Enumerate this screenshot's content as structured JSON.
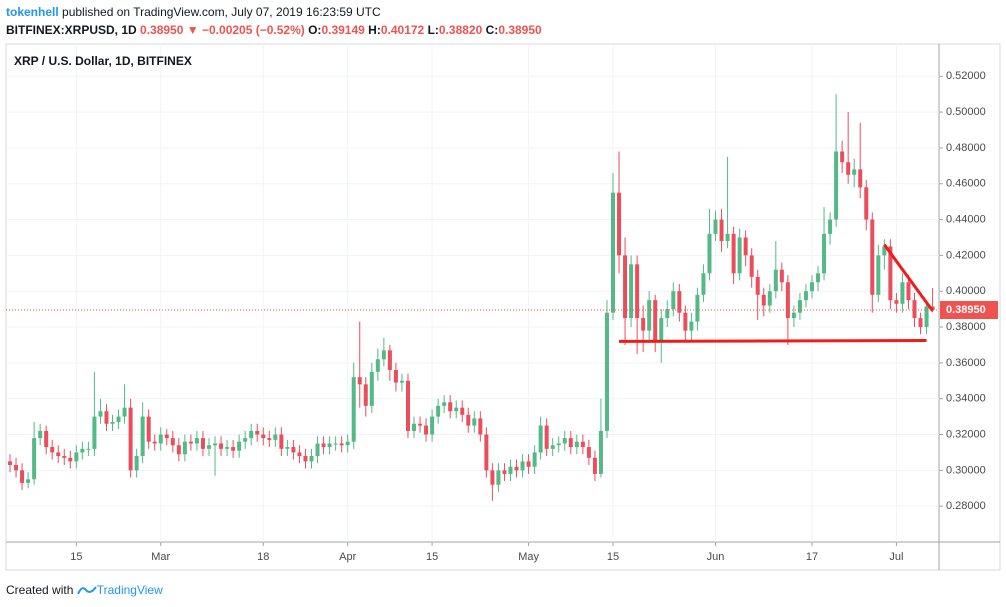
{
  "header": {
    "author": "tokenhell",
    "published": "published on TradingView.com, July 07, 2019 16:23:59 UTC",
    "symbol": "BITFINEX:XRPUSD, 1D",
    "last": "0.38950",
    "arrow": "▼",
    "change": "−0.00205 (−0.52%)",
    "ohlc": [
      {
        "k": "O:",
        "v": "0.39149"
      },
      {
        "k": "H:",
        "v": "0.40172"
      },
      {
        "k": "L:",
        "v": "0.38820"
      },
      {
        "k": "C:",
        "v": "0.38950"
      }
    ]
  },
  "footer": {
    "text": "Created with",
    "brand": "TradingView"
  },
  "chart_data": {
    "type": "candlestick",
    "title": "XRP / U.S. Dollar, 1D, BITFINEX",
    "up_color": "#53b987",
    "down_color": "#eb4d5c",
    "grid": true,
    "x": [
      "Feb 4",
      "Feb 5",
      "Feb 6",
      "Feb 7",
      "Feb 8",
      "Feb 9",
      "Feb 10",
      "Feb 11",
      "Feb 12",
      "Feb 13",
      "Feb 14",
      "Feb 15",
      "Feb 16",
      "Feb 17",
      "Feb 18",
      "Feb 19",
      "Feb 20",
      "Feb 21",
      "Feb 22",
      "Feb 23",
      "Feb 24",
      "Feb 25",
      "Feb 26",
      "Feb 27",
      "Feb 28",
      "Mar 1",
      "Mar 2",
      "Mar 3",
      "Mar 4",
      "Mar 5",
      "Mar 6",
      "Mar 7",
      "Mar 8",
      "Mar 9",
      "Mar 10",
      "Mar 11",
      "Mar 12",
      "Mar 13",
      "Mar 14",
      "Mar 15",
      "Mar 16",
      "Mar 17",
      "Mar 18",
      "Mar 19",
      "Mar 20",
      "Mar 21",
      "Mar 22",
      "Mar 23",
      "Mar 24",
      "Mar 25",
      "Mar 26",
      "Mar 27",
      "Mar 28",
      "Mar 29",
      "Mar 30",
      "Mar 31",
      "Apr 1",
      "Apr 2",
      "Apr 3",
      "Apr 4",
      "Apr 5",
      "Apr 6",
      "Apr 7",
      "Apr 8",
      "Apr 9",
      "Apr 10",
      "Apr 11",
      "Apr 12",
      "Apr 13",
      "Apr 14",
      "Apr 15",
      "Apr 16",
      "Apr 17",
      "Apr 18",
      "Apr 19",
      "Apr 20",
      "Apr 21",
      "Apr 22",
      "Apr 23",
      "Apr 24",
      "Apr 25",
      "Apr 26",
      "Apr 27",
      "Apr 28",
      "Apr 29",
      "Apr 30",
      "May 1",
      "May 2",
      "May 3",
      "May 4",
      "May 5",
      "May 6",
      "May 7",
      "May 8",
      "May 9",
      "May 10",
      "May 11",
      "May 12",
      "May 13",
      "May 14",
      "May 15",
      "May 16",
      "May 17",
      "May 18",
      "May 19",
      "May 20",
      "May 21",
      "May 22",
      "May 23",
      "May 24",
      "May 25",
      "May 26",
      "May 27",
      "May 28",
      "May 29",
      "May 30",
      "May 31",
      "Jun 1",
      "Jun 2",
      "Jun 3",
      "Jun 4",
      "Jun 5",
      "Jun 6",
      "Jun 7",
      "Jun 8",
      "Jun 9",
      "Jun 10",
      "Jun 11",
      "Jun 12",
      "Jun 13",
      "Jun 14",
      "Jun 15",
      "Jun 16",
      "Jun 17",
      "Jun 18",
      "Jun 19",
      "Jun 20",
      "Jun 21",
      "Jun 22",
      "Jun 23",
      "Jun 24",
      "Jun 25",
      "Jun 26",
      "Jun 27",
      "Jun 28",
      "Jun 29",
      "Jun 30",
      "Jul 1",
      "Jul 2",
      "Jul 3",
      "Jul 4",
      "Jul 5",
      "Jul 6",
      "Jul 7"
    ],
    "open": [
      0.305,
      0.303,
      0.3,
      0.293,
      0.295,
      0.318,
      0.322,
      0.313,
      0.31,
      0.308,
      0.307,
      0.305,
      0.31,
      0.312,
      0.312,
      0.33,
      0.333,
      0.326,
      0.327,
      0.33,
      0.335,
      0.3,
      0.308,
      0.33,
      0.316,
      0.315,
      0.32,
      0.318,
      0.314,
      0.309,
      0.316,
      0.315,
      0.318,
      0.312,
      0.314,
      0.315,
      0.312,
      0.313,
      0.311,
      0.316,
      0.318,
      0.322,
      0.32,
      0.318,
      0.317,
      0.32,
      0.312,
      0.313,
      0.31,
      0.308,
      0.305,
      0.308,
      0.315,
      0.313,
      0.315,
      0.315,
      0.314,
      0.316,
      0.352,
      0.348,
      0.336,
      0.355,
      0.362,
      0.367,
      0.356,
      0.349,
      0.35,
      0.322,
      0.326,
      0.325,
      0.32,
      0.33,
      0.336,
      0.338,
      0.333,
      0.335,
      0.331,
      0.325,
      0.329,
      0.32,
      0.3,
      0.292,
      0.3,
      0.298,
      0.302,
      0.3,
      0.305,
      0.302,
      0.31,
      0.325,
      0.312,
      0.314,
      0.315,
      0.318,
      0.313,
      0.316,
      0.313,
      0.307,
      0.298,
      0.322,
      0.388,
      0.455,
      0.42,
      0.385,
      0.415,
      0.385,
      0.378,
      0.395,
      0.372,
      0.385,
      0.39,
      0.4,
      0.388,
      0.378,
      0.383,
      0.398,
      0.41,
      0.432,
      0.44,
      0.428,
      0.432,
      0.41,
      0.43,
      0.42,
      0.408,
      0.398,
      0.392,
      0.4,
      0.412,
      0.405,
      0.385,
      0.388,
      0.395,
      0.4,
      0.405,
      0.41,
      0.432,
      0.44,
      0.478,
      0.472,
      0.465,
      0.468,
      0.458,
      0.44,
      0.398,
      0.42,
      0.425,
      0.395,
      0.393,
      0.405,
      0.395,
      0.385,
      0.38,
      0.39149
    ],
    "high": [
      0.309,
      0.307,
      0.304,
      0.299,
      0.327,
      0.326,
      0.325,
      0.317,
      0.314,
      0.312,
      0.311,
      0.314,
      0.316,
      0.316,
      0.355,
      0.34,
      0.337,
      0.331,
      0.334,
      0.348,
      0.34,
      0.312,
      0.338,
      0.334,
      0.32,
      0.324,
      0.323,
      0.322,
      0.318,
      0.32,
      0.32,
      0.322,
      0.322,
      0.318,
      0.319,
      0.319,
      0.317,
      0.317,
      0.32,
      0.322,
      0.326,
      0.326,
      0.324,
      0.322,
      0.324,
      0.324,
      0.317,
      0.317,
      0.314,
      0.312,
      0.312,
      0.319,
      0.319,
      0.319,
      0.319,
      0.319,
      0.32,
      0.36,
      0.383,
      0.352,
      0.36,
      0.368,
      0.374,
      0.37,
      0.36,
      0.354,
      0.354,
      0.33,
      0.33,
      0.329,
      0.334,
      0.34,
      0.342,
      0.342,
      0.339,
      0.339,
      0.335,
      0.333,
      0.333,
      0.324,
      0.304,
      0.304,
      0.304,
      0.306,
      0.306,
      0.309,
      0.309,
      0.314,
      0.33,
      0.329,
      0.318,
      0.319,
      0.322,
      0.322,
      0.32,
      0.32,
      0.317,
      0.311,
      0.34,
      0.395,
      0.466,
      0.478,
      0.43,
      0.42,
      0.42,
      0.392,
      0.4,
      0.398,
      0.39,
      0.395,
      0.405,
      0.404,
      0.392,
      0.388,
      0.402,
      0.415,
      0.446,
      0.445,
      0.446,
      0.475,
      0.436,
      0.435,
      0.434,
      0.424,
      0.412,
      0.402,
      0.404,
      0.428,
      0.416,
      0.409,
      0.392,
      0.399,
      0.404,
      0.409,
      0.414,
      0.447,
      0.444,
      0.51,
      0.484,
      0.5,
      0.474,
      0.494,
      0.462,
      0.444,
      0.426,
      0.429,
      0.429,
      0.399,
      0.41,
      0.409,
      0.399,
      0.388,
      0.395,
      0.40172
    ],
    "low": [
      0.299,
      0.296,
      0.289,
      0.29,
      0.292,
      0.314,
      0.309,
      0.306,
      0.304,
      0.303,
      0.301,
      0.301,
      0.306,
      0.308,
      0.308,
      0.326,
      0.322,
      0.322,
      0.323,
      0.326,
      0.296,
      0.296,
      0.304,
      0.312,
      0.311,
      0.311,
      0.314,
      0.31,
      0.305,
      0.305,
      0.311,
      0.311,
      0.308,
      0.308,
      0.297,
      0.308,
      0.308,
      0.307,
      0.307,
      0.312,
      0.314,
      0.316,
      0.314,
      0.313,
      0.313,
      0.308,
      0.308,
      0.306,
      0.304,
      0.301,
      0.301,
      0.304,
      0.309,
      0.309,
      0.311,
      0.31,
      0.31,
      0.312,
      0.335,
      0.33,
      0.332,
      0.35,
      0.358,
      0.35,
      0.344,
      0.344,
      0.318,
      0.318,
      0.321,
      0.316,
      0.316,
      0.326,
      0.332,
      0.329,
      0.329,
      0.327,
      0.321,
      0.321,
      0.316,
      0.296,
      0.283,
      0.288,
      0.294,
      0.294,
      0.296,
      0.296,
      0.298,
      0.298,
      0.306,
      0.308,
      0.308,
      0.31,
      0.311,
      0.309,
      0.309,
      0.309,
      0.303,
      0.294,
      0.296,
      0.318,
      0.384,
      0.41,
      0.37,
      0.38,
      0.365,
      0.366,
      0.372,
      0.366,
      0.36,
      0.38,
      0.386,
      0.383,
      0.372,
      0.372,
      0.378,
      0.394,
      0.406,
      0.428,
      0.422,
      0.424,
      0.404,
      0.406,
      0.414,
      0.402,
      0.384,
      0.386,
      0.388,
      0.396,
      0.4,
      0.37,
      0.38,
      0.384,
      0.391,
      0.396,
      0.4,
      0.406,
      0.426,
      0.436,
      0.466,
      0.46,
      0.458,
      0.452,
      0.434,
      0.388,
      0.394,
      0.412,
      0.39,
      0.388,
      0.388,
      0.39,
      0.38,
      0.376,
      0.376,
      0.3882
    ],
    "close": [
      0.303,
      0.3,
      0.293,
      0.295,
      0.318,
      0.322,
      0.313,
      0.31,
      0.308,
      0.307,
      0.305,
      0.31,
      0.312,
      0.312,
      0.33,
      0.333,
      0.326,
      0.327,
      0.33,
      0.335,
      0.3,
      0.308,
      0.33,
      0.316,
      0.315,
      0.32,
      0.318,
      0.314,
      0.309,
      0.316,
      0.315,
      0.318,
      0.312,
      0.314,
      0.315,
      0.312,
      0.313,
      0.311,
      0.316,
      0.318,
      0.322,
      0.32,
      0.318,
      0.317,
      0.32,
      0.312,
      0.313,
      0.31,
      0.308,
      0.305,
      0.308,
      0.315,
      0.313,
      0.315,
      0.315,
      0.314,
      0.316,
      0.352,
      0.348,
      0.336,
      0.355,
      0.362,
      0.367,
      0.356,
      0.349,
      0.35,
      0.322,
      0.326,
      0.325,
      0.32,
      0.33,
      0.336,
      0.338,
      0.333,
      0.335,
      0.331,
      0.325,
      0.329,
      0.32,
      0.3,
      0.292,
      0.3,
      0.298,
      0.302,
      0.3,
      0.305,
      0.302,
      0.31,
      0.325,
      0.312,
      0.314,
      0.315,
      0.318,
      0.313,
      0.316,
      0.313,
      0.307,
      0.298,
      0.322,
      0.388,
      0.455,
      0.42,
      0.385,
      0.415,
      0.385,
      0.378,
      0.395,
      0.372,
      0.385,
      0.39,
      0.4,
      0.388,
      0.378,
      0.383,
      0.398,
      0.41,
      0.432,
      0.44,
      0.428,
      0.432,
      0.41,
      0.43,
      0.42,
      0.408,
      0.398,
      0.392,
      0.4,
      0.412,
      0.405,
      0.385,
      0.388,
      0.395,
      0.4,
      0.405,
      0.41,
      0.432,
      0.44,
      0.478,
      0.472,
      0.465,
      0.468,
      0.458,
      0.44,
      0.398,
      0.42,
      0.425,
      0.395,
      0.393,
      0.405,
      0.395,
      0.385,
      0.38,
      0.39149,
      0.3895
    ],
    "ylim": [
      0.26,
      0.538
    ],
    "yticks": [
      {
        "value": 0.28,
        "label": "0.28000"
      },
      {
        "value": 0.3,
        "label": "0.30000"
      },
      {
        "value": 0.32,
        "label": "0.32000"
      },
      {
        "value": 0.34,
        "label": "0.34000"
      },
      {
        "value": 0.36,
        "label": "0.36000"
      },
      {
        "value": 0.38,
        "label": "0.38000"
      },
      {
        "value": 0.4,
        "label": "0.40000"
      },
      {
        "value": 0.42,
        "label": "0.42000"
      },
      {
        "value": 0.44,
        "label": "0.44000"
      },
      {
        "value": 0.46,
        "label": "0.46000"
      },
      {
        "value": 0.48,
        "label": "0.48000"
      },
      {
        "value": 0.5,
        "label": "0.50000"
      },
      {
        "value": 0.52,
        "label": "0.52000"
      }
    ],
    "xticks": [
      {
        "value": "Feb 15",
        "label": "15"
      },
      {
        "value": "Mar 1",
        "label": "Mar"
      },
      {
        "value": "Mar 18",
        "label": "18"
      },
      {
        "value": "Apr 1",
        "label": "Apr"
      },
      {
        "value": "Apr 15",
        "label": "15"
      },
      {
        "value": "May 1",
        "label": "May"
      },
      {
        "value": "May 15",
        "label": "15"
      },
      {
        "value": "Jun 1",
        "label": "Jun"
      },
      {
        "value": "Jun 17",
        "label": "17"
      },
      {
        "value": "Jul 1",
        "label": "Jul"
      }
    ],
    "price_line": {
      "value": 0.3895,
      "label": "0.38950",
      "color": "#ef5350"
    },
    "trend_lines": [
      {
        "x": [
          "May 16",
          "Jul 6"
        ],
        "y": [
          0.372,
          0.3725
        ],
        "color": "#f21b1b"
      },
      {
        "x": [
          "Jun 29",
          "Jul 7"
        ],
        "y": [
          0.426,
          0.389
        ],
        "color": "#f21b1b"
      }
    ]
  }
}
